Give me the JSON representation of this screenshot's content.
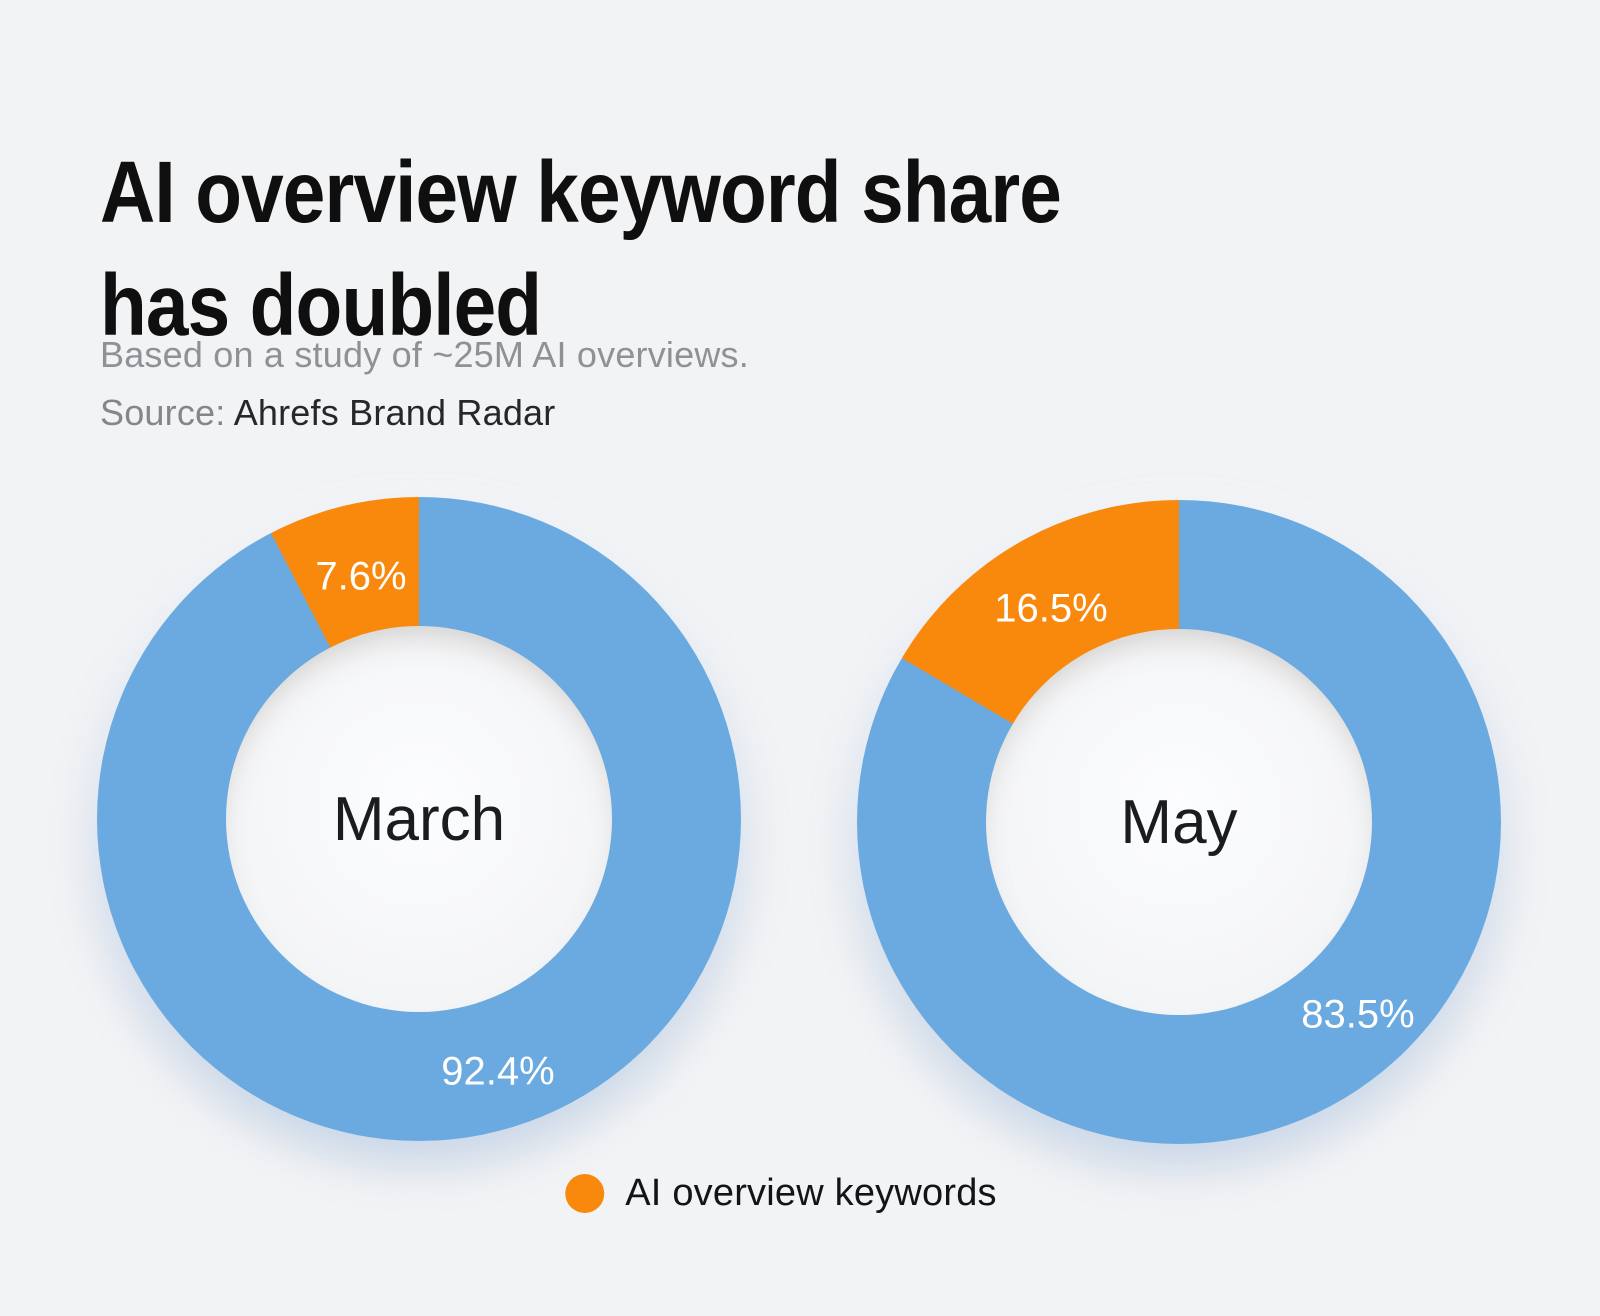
{
  "title_lines": [
    "AI overview keyword share",
    "has doubled"
  ],
  "subtitle": "Based on a study of ~25M AI overviews.",
  "source_label": "Source: ",
  "source_value": "Ahrefs Brand Radar",
  "legend": {
    "label": "AI overview keywords",
    "color": "#F8890D"
  },
  "colors": {
    "background": "#F2F3F5",
    "orange": "#F8890D",
    "blue": "#6AAAE0",
    "title_text": "#0F0F10",
    "subtitle_gray": "#8F9196",
    "percent_label_text": "#FFFFFF"
  },
  "chart_data": [
    {
      "type": "pie",
      "style": "donut",
      "center_label": "March",
      "legend_position": "bottom",
      "slice_order": "AI overview slice ends at 12 o'clock, drawn counter-clockwise; other slice fills clockwise from top",
      "values": {
        "ai_overview": 7.6,
        "other": 92.4
      },
      "labels": {
        "ai_overview": "7.6%",
        "other": "92.4%"
      },
      "colors": {
        "ai_overview": "#F8890D",
        "other": "#6AAAE0"
      }
    },
    {
      "type": "pie",
      "style": "donut",
      "center_label": "May",
      "legend_position": "bottom",
      "slice_order": "AI overview slice ends at 12 o'clock, drawn counter-clockwise; other slice fills clockwise from top",
      "values": {
        "ai_overview": 16.5,
        "other": 83.5
      },
      "labels": {
        "ai_overview": "16.5%",
        "other": "83.5%"
      },
      "colors": {
        "ai_overview": "#F8890D",
        "other": "#6AAAE0"
      }
    }
  ]
}
